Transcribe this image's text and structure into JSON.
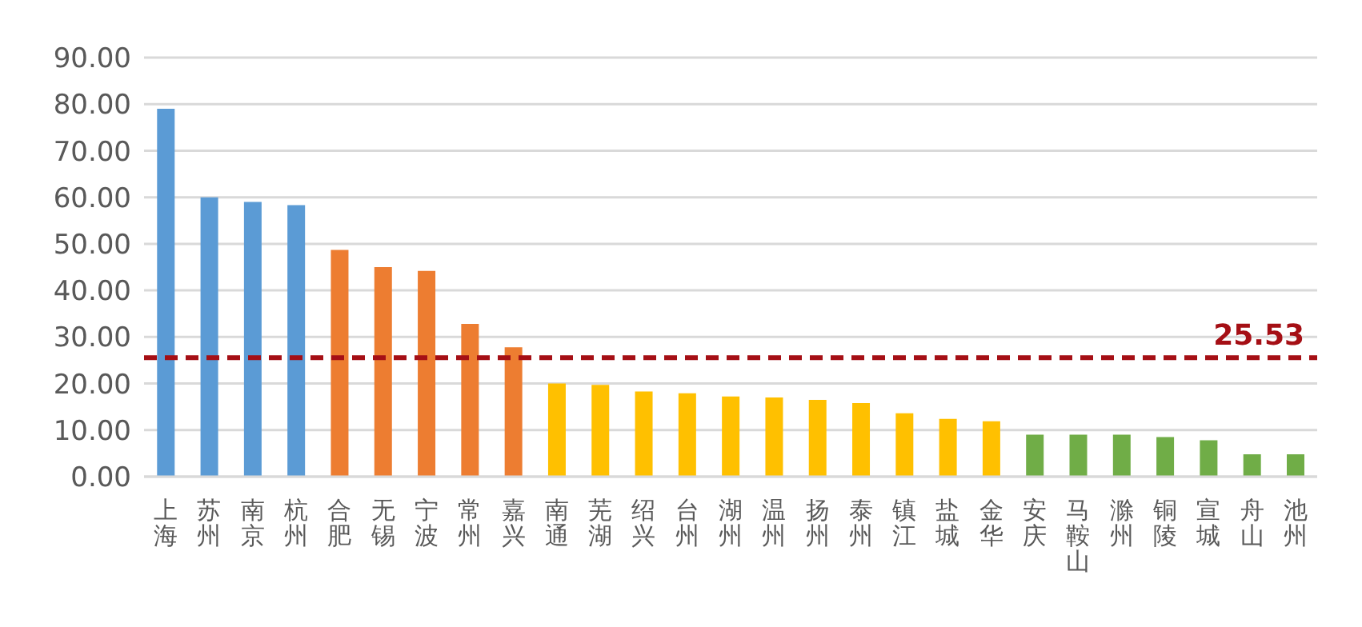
{
  "chart_data": {
    "type": "bar",
    "categories": [
      "上海",
      "苏州",
      "南京",
      "杭州",
      "合肥",
      "无锡",
      "宁波",
      "常州",
      "嘉兴",
      "南通",
      "芜湖",
      "绍兴",
      "台州",
      "湖州",
      "温州",
      "扬州",
      "泰州",
      "镇江",
      "盐城",
      "金华",
      "安庆",
      "马鞍山",
      "滁州",
      "铜陵",
      "宣城",
      "舟山",
      "池州"
    ],
    "values": [
      79,
      60,
      59,
      58.3,
      48.7,
      45,
      44.2,
      32.8,
      27.8,
      20,
      19.7,
      18.3,
      17.9,
      17.2,
      17,
      16.5,
      15.8,
      13.6,
      12.4,
      11.9,
      9,
      9,
      9,
      8.5,
      7.8,
      4.8,
      4.8
    ],
    "colors": [
      "#5b9bd5",
      "#5b9bd5",
      "#5b9bd5",
      "#5b9bd5",
      "#ed7d31",
      "#ed7d31",
      "#ed7d31",
      "#ed7d31",
      "#ed7d31",
      "#ffc000",
      "#ffc000",
      "#ffc000",
      "#ffc000",
      "#ffc000",
      "#ffc000",
      "#ffc000",
      "#ffc000",
      "#ffc000",
      "#ffc000",
      "#ffc000",
      "#70ad47",
      "#70ad47",
      "#70ad47",
      "#70ad47",
      "#70ad47",
      "#70ad47",
      "#70ad47"
    ],
    "ylim": [
      0,
      90
    ],
    "yticks": [
      {
        "value": 0,
        "label": "0.00"
      },
      {
        "value": 10,
        "label": "10.00"
      },
      {
        "value": 20,
        "label": "20.00"
      },
      {
        "value": 30,
        "label": "30.00"
      },
      {
        "value": 40,
        "label": "40.00"
      },
      {
        "value": 50,
        "label": "50.00"
      },
      {
        "value": 60,
        "label": "60.00"
      },
      {
        "value": 70,
        "label": "70.00"
      },
      {
        "value": 80,
        "label": "80.00"
      },
      {
        "value": 90,
        "label": "90.00"
      }
    ],
    "grid": "y",
    "ref_lines": [
      {
        "axis": "y",
        "value": 25.53,
        "label": "25.53",
        "color": "#a50f15",
        "line_style": "dashed"
      }
    ]
  }
}
